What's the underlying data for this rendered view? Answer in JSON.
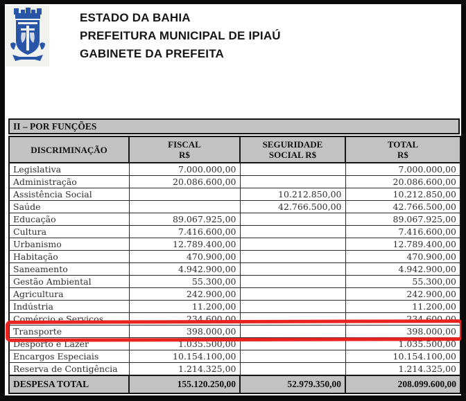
{
  "header": {
    "line1": "ESTADO DA BAHIA",
    "line2": "PREFEITURA MUNICIPAL DE IPIAÚ",
    "line3": "GABINETE DA PREFEITA",
    "logo": "ipiau-municipal-coat-of-arms",
    "logo_color": "#2855a8"
  },
  "table": {
    "section_title": "II – POR FUNÇÕES",
    "columns": [
      {
        "line1": "DISCRIMINAÇÃO",
        "line2": ""
      },
      {
        "line1": "FISCAL",
        "line2": "R$"
      },
      {
        "line1": "SEGURIDADE",
        "line2": "SOCIAL  R$"
      },
      {
        "line1": "TOTAL",
        "line2": "R$"
      }
    ],
    "rows": [
      {
        "label": "Legislativa",
        "fiscal": "7.000.000,00",
        "seguridade": "",
        "total": "7.000.000,00",
        "highlighted": false
      },
      {
        "label": "Administração",
        "fiscal": "20.086.600,00",
        "seguridade": "",
        "total": "20.086.600,00",
        "highlighted": false
      },
      {
        "label": "Assistência Social",
        "fiscal": "",
        "seguridade": "10.212.850,00",
        "total": "10.212.850,00",
        "highlighted": false
      },
      {
        "label": "Saúde",
        "fiscal": "",
        "seguridade": "42.766.500,00",
        "total": "42.766.500,00",
        "highlighted": false
      },
      {
        "label": "Educação",
        "fiscal": "89.067.925,00",
        "seguridade": "",
        "total": "89.067.925,00",
        "highlighted": false
      },
      {
        "label": "Cultura",
        "fiscal": "7.416.600,00",
        "seguridade": "",
        "total": "7.416.600,00",
        "highlighted": false
      },
      {
        "label": "Urbanismo",
        "fiscal": "12.789.400,00",
        "seguridade": "",
        "total": "12.789.400,00",
        "highlighted": false
      },
      {
        "label": "Habitação",
        "fiscal": "470.900,00",
        "seguridade": "",
        "total": "470.900,00",
        "highlighted": false
      },
      {
        "label": "Saneamento",
        "fiscal": "4.942.900,00",
        "seguridade": "",
        "total": "4.942.900,00",
        "highlighted": false
      },
      {
        "label": "Gestão Ambiental",
        "fiscal": "55.300,00",
        "seguridade": "",
        "total": "55.300,00",
        "highlighted": false
      },
      {
        "label": "Agricultura",
        "fiscal": "242.900,00",
        "seguridade": "",
        "total": "242.900,00",
        "highlighted": false
      },
      {
        "label": "Indústria",
        "fiscal": "11.200,00",
        "seguridade": "",
        "total": "11.200,00",
        "highlighted": false
      },
      {
        "label": "Comércio e Serviços",
        "fiscal": "234.600,00",
        "seguridade": "",
        "total": "234.600,00",
        "highlighted": false
      },
      {
        "label": "Transporte",
        "fiscal": "398.000,00",
        "seguridade": "",
        "total": "398.000,00",
        "highlighted": true
      },
      {
        "label": "Desporto e Lazer",
        "fiscal": "1.035.500,00",
        "seguridade": "",
        "total": "1.035.500,00",
        "highlighted": false
      },
      {
        "label": "Encargos Especiais",
        "fiscal": "10.154.100,00",
        "seguridade": "",
        "total": "10.154.100,00",
        "highlighted": false
      },
      {
        "label": "Reserva de Contigência",
        "fiscal": "1.214.325,00",
        "seguridade": "",
        "total": "1.214.325,00",
        "highlighted": false
      }
    ],
    "total_row": {
      "label": "DESPESA TOTAL",
      "fiscal": "155.120.250,00",
      "seguridade": "52.979.350,00",
      "total": "208.099.600,00"
    }
  },
  "colors": {
    "header_gray": "#c2c2c2",
    "border_black": "#141414",
    "highlight_red": "#e92420",
    "logo_blue": "#2855a8"
  }
}
